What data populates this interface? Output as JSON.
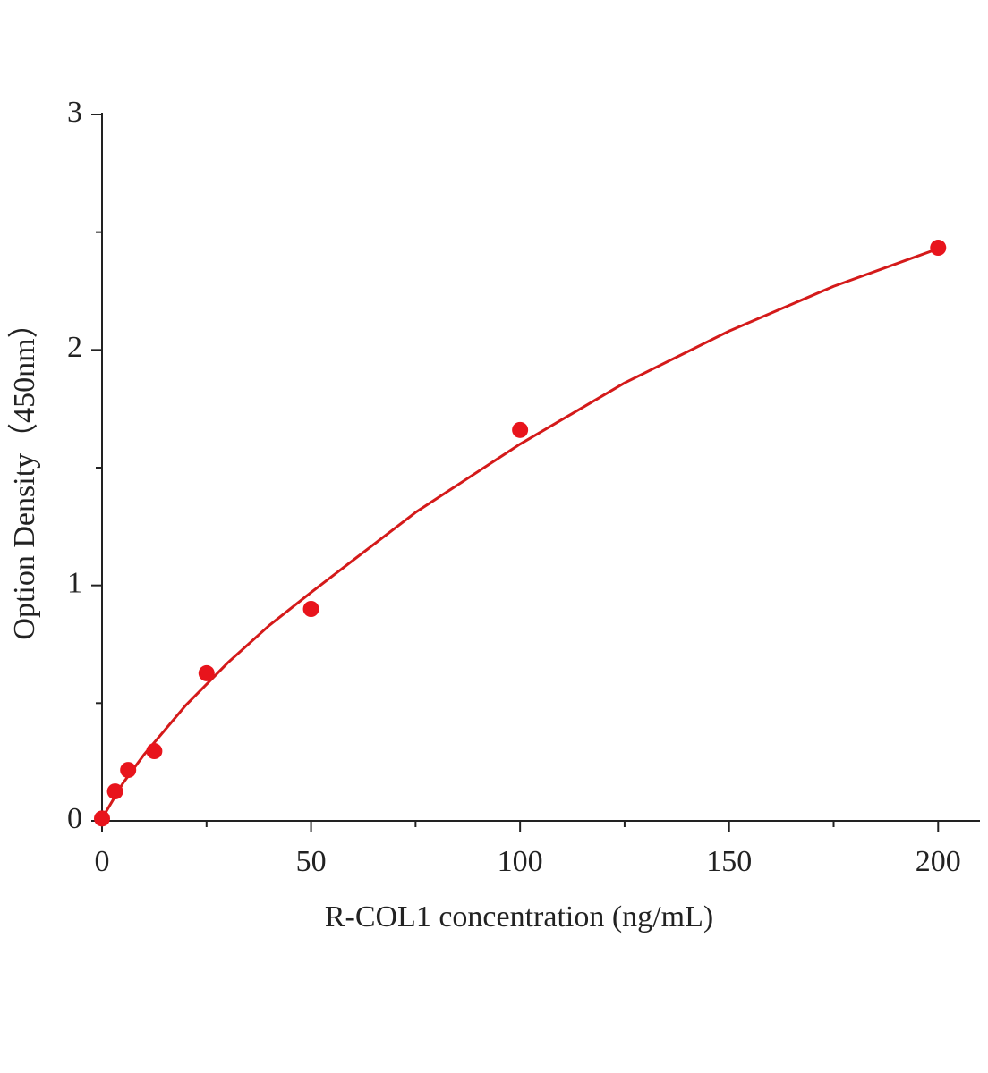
{
  "chart_data": {
    "type": "scatter",
    "x_label": "R-COL1 concentration (ng/mL)",
    "y_label": "Option Density（450nm）",
    "xlim": [
      0,
      210
    ],
    "ylim": [
      0,
      3
    ],
    "xticks": [
      0,
      50,
      100,
      150,
      200
    ],
    "yticks": [
      0,
      1,
      2,
      3
    ],
    "x_minor_ticks": [
      25,
      75,
      125,
      175
    ],
    "y_minor_ticks": [
      0.5,
      1.5,
      2.5
    ],
    "grid": false,
    "series": [
      {
        "color": "#e8141c",
        "x": [
          0,
          3.125,
          6.25,
          12.5,
          25,
          50,
          100,
          200
        ],
        "values": [
          0.01,
          0.125,
          0.216,
          0.296,
          0.627,
          0.9,
          1.66,
          2.434
        ]
      }
    ],
    "fit": {
      "color": "#d41a1a",
      "x": [
        0,
        5,
        10,
        20,
        30,
        40,
        50,
        75,
        100,
        125,
        150,
        175,
        200
      ],
      "values": [
        0.01,
        0.16,
        0.28,
        0.49,
        0.67,
        0.83,
        0.97,
        1.31,
        1.6,
        1.86,
        2.08,
        2.27,
        2.43
      ]
    }
  }
}
